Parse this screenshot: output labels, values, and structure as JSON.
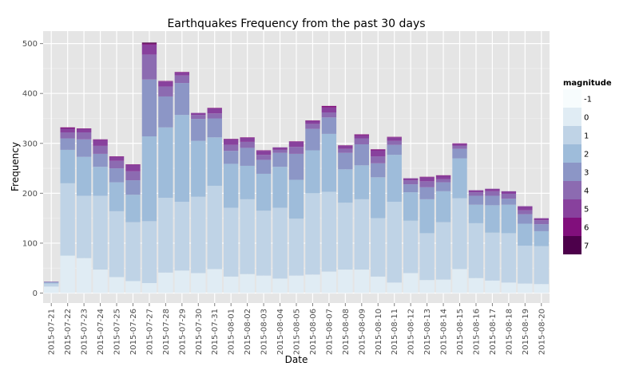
{
  "chart_data": {
    "type": "bar",
    "stacked": true,
    "title": "Earthquakes Frequency from the past 30 days",
    "xlabel": "Date",
    "ylabel": "Frequency",
    "ylim": [
      -20,
      525
    ],
    "yticks": [
      0,
      100,
      200,
      300,
      400,
      500
    ],
    "grid": true,
    "legend": {
      "title": "magnitude",
      "position": "right",
      "entries": [
        "-1",
        "0",
        "1",
        "2",
        "3",
        "4",
        "5",
        "6",
        "7"
      ]
    },
    "colors": [
      "#f7fcfd",
      "#e0ecf4",
      "#bfd3e6",
      "#9ebcda",
      "#8c96c6",
      "#8c6bb1",
      "#88419d",
      "#810f7c",
      "#4d004b"
    ],
    "categories": [
      "2015-07-21",
      "2015-07-22",
      "2015-07-23",
      "2015-07-24",
      "2015-07-25",
      "2015-07-26",
      "2015-07-27",
      "2015-07-28",
      "2015-07-29",
      "2015-07-30",
      "2015-07-31",
      "2015-08-01",
      "2015-08-02",
      "2015-08-03",
      "2015-08-04",
      "2015-08-05",
      "2015-08-06",
      "2015-08-07",
      "2015-08-08",
      "2015-08-09",
      "2015-08-10",
      "2015-08-11",
      "2015-08-12",
      "2015-08-13",
      "2015-08-14",
      "2015-08-15",
      "2015-08-16",
      "2015-08-17",
      "2015-08-18",
      "2015-08-19",
      "2015-08-20"
    ],
    "series": [
      {
        "name": "-1",
        "values": [
          0,
          0,
          0,
          0,
          0,
          0,
          0,
          0,
          0,
          0,
          0,
          0,
          0,
          0,
          0,
          0,
          0,
          0,
          0,
          0,
          0,
          0,
          0,
          0,
          0,
          0,
          0,
          0,
          0,
          0,
          0
        ]
      },
      {
        "name": "0",
        "values": [
          13,
          75,
          70,
          47,
          32,
          24,
          20,
          41,
          45,
          40,
          48,
          33,
          38,
          35,
          29,
          35,
          37,
          43,
          47,
          47,
          33,
          21,
          40,
          26,
          27,
          48,
          30,
          25,
          21,
          19,
          18
        ]
      },
      {
        "name": "1",
        "values": [
          6,
          145,
          125,
          148,
          132,
          118,
          124,
          150,
          138,
          153,
          167,
          138,
          150,
          130,
          142,
          114,
          163,
          160,
          134,
          141,
          117,
          162,
          105,
          94,
          115,
          142,
          110,
          96,
          99,
          76,
          76
        ]
      },
      {
        "name": "2",
        "values": [
          2,
          67,
          78,
          58,
          58,
          55,
          170,
          141,
          174,
          112,
          97,
          88,
          67,
          74,
          82,
          78,
          86,
          116,
          67,
          68,
          82,
          94,
          57,
          68,
          62,
          80,
          37,
          55,
          57,
          44,
          30
        ]
      },
      {
        "name": "3",
        "values": [
          1,
          23,
          35,
          26,
          28,
          29,
          114,
          62,
          64,
          44,
          38,
          26,
          36,
          28,
          28,
          52,
          43,
          33,
          33,
          42,
          28,
          20,
          16,
          24,
          18,
          19,
          18,
          19,
          12,
          19,
          14
        ]
      },
      {
        "name": "4",
        "values": [
          1,
          12,
          14,
          16,
          15,
          18,
          50,
          20,
          15,
          8,
          10,
          12,
          12,
          10,
          6,
          14,
          10,
          10,
          8,
          12,
          14,
          8,
          8,
          12,
          6,
          6,
          7,
          9,
          10,
          8,
          8
        ]
      },
      {
        "name": "5",
        "values": [
          0,
          8,
          7,
          12,
          8,
          13,
          20,
          10,
          6,
          4,
          10,
          11,
          8,
          8,
          5,
          10,
          6,
          10,
          6,
          6,
          12,
          7,
          4,
          8,
          7,
          4,
          4,
          5,
          5,
          8,
          4
        ]
      },
      {
        "name": "6",
        "values": [
          0,
          2,
          1,
          1,
          1,
          1,
          2,
          1,
          1,
          0,
          1,
          1,
          1,
          1,
          0,
          1,
          1,
          3,
          1,
          2,
          2,
          1,
          0,
          1,
          1,
          1,
          0,
          0,
          0,
          0,
          0
        ]
      },
      {
        "name": "7",
        "values": [
          0,
          0,
          0,
          0,
          0,
          0,
          2,
          0,
          0,
          0,
          0,
          0,
          0,
          0,
          0,
          0,
          0,
          0,
          0,
          0,
          0,
          0,
          0,
          0,
          0,
          0,
          0,
          0,
          0,
          0,
          0
        ]
      }
    ]
  }
}
